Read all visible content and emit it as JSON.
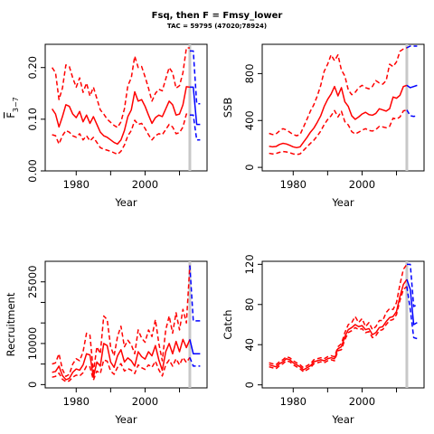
{
  "title": "Fsq, then F = Fmsy_lower",
  "subtitle": "TAC = 59795 (47020;78924)",
  "colors": {
    "historic": "#ff0000",
    "forecast": "#0000ff",
    "vline": "#c8c8c8"
  },
  "chart_data": [
    {
      "type": "line",
      "panel": "top-left",
      "xlabel": "Year",
      "ylabel": "F̄3–7",
      "ylabel_base": "F",
      "ylabel_sub": "3−7",
      "xlim": [
        1971,
        2018
      ],
      "ylim": [
        0,
        0.245
      ],
      "xticks": [
        1980,
        2000
      ],
      "yticks": [
        0.0,
        0.1,
        0.2
      ],
      "ytick_labels": [
        "0.00",
        "0.10",
        "0.20"
      ],
      "vline_x": 2013,
      "historic": {
        "x": [
          1973,
          1974,
          1975,
          1976,
          1977,
          1978,
          1979,
          1980,
          1981,
          1982,
          1983,
          1984,
          1985,
          1986,
          1987,
          1988,
          1989,
          1990,
          1991,
          1992,
          1993,
          1994,
          1995,
          1996,
          1997,
          1998,
          1999,
          2000,
          2001,
          2002,
          2003,
          2004,
          2005,
          2006,
          2007,
          2008,
          2009,
          2010,
          2011,
          2012,
          2013
        ],
        "estimate": [
          0.12,
          0.11,
          0.085,
          0.105,
          0.128,
          0.125,
          0.11,
          0.103,
          0.115,
          0.095,
          0.108,
          0.092,
          0.105,
          0.09,
          0.075,
          0.068,
          0.065,
          0.06,
          0.055,
          0.052,
          0.06,
          0.078,
          0.105,
          0.118,
          0.153,
          0.135,
          0.138,
          0.125,
          0.108,
          0.092,
          0.103,
          0.108,
          0.105,
          0.12,
          0.135,
          0.128,
          0.108,
          0.11,
          0.128,
          0.163,
          0.162
        ],
        "lower": [
          0.07,
          0.068,
          0.052,
          0.068,
          0.078,
          0.075,
          0.068,
          0.065,
          0.072,
          0.06,
          0.068,
          0.058,
          0.065,
          0.055,
          0.045,
          0.042,
          0.04,
          0.038,
          0.035,
          0.032,
          0.038,
          0.05,
          0.068,
          0.078,
          0.098,
          0.09,
          0.092,
          0.082,
          0.07,
          0.06,
          0.068,
          0.072,
          0.07,
          0.08,
          0.09,
          0.085,
          0.072,
          0.074,
          0.085,
          0.11,
          0.108
        ],
        "upper": [
          0.2,
          0.19,
          0.138,
          0.16,
          0.205,
          0.202,
          0.18,
          0.162,
          0.18,
          0.152,
          0.17,
          0.145,
          0.162,
          0.14,
          0.118,
          0.11,
          0.1,
          0.094,
          0.088,
          0.084,
          0.095,
          0.12,
          0.165,
          0.18,
          0.222,
          0.2,
          0.202,
          0.182,
          0.16,
          0.135,
          0.15,
          0.158,
          0.155,
          0.178,
          0.2,
          0.19,
          0.16,
          0.165,
          0.19,
          0.238,
          0.238
        ]
      },
      "forecast": {
        "x": [
          2013,
          2014,
          2015,
          2016
        ],
        "estimate": [
          0.162,
          0.162,
          0.09,
          0.09
        ],
        "lower": [
          0.108,
          0.108,
          0.06,
          0.06
        ],
        "upper": [
          0.232,
          0.232,
          0.13,
          0.13
        ]
      }
    },
    {
      "type": "line",
      "panel": "top-right",
      "xlabel": "Year",
      "ylabel": "SSB",
      "xlim": [
        1971,
        2018
      ],
      "ylim": [
        -30,
        1050
      ],
      "xticks": [
        1980,
        2000
      ],
      "yticks": [
        0,
        400,
        800
      ],
      "ytick_labels": [
        "0",
        "400",
        "800"
      ],
      "vline_x": 2013,
      "historic": {
        "x": [
          1973,
          1974,
          1975,
          1976,
          1977,
          1978,
          1979,
          1980,
          1981,
          1982,
          1983,
          1984,
          1985,
          1986,
          1987,
          1988,
          1989,
          1990,
          1991,
          1992,
          1993,
          1994,
          1995,
          1996,
          1997,
          1998,
          1999,
          2000,
          2001,
          2002,
          2003,
          2004,
          2005,
          2006,
          2007,
          2008,
          2009,
          2010,
          2011,
          2012,
          2013
        ],
        "estimate": [
          180,
          175,
          178,
          195,
          205,
          200,
          188,
          175,
          168,
          175,
          215,
          255,
          300,
          335,
          385,
          440,
          520,
          580,
          625,
          690,
          610,
          680,
          560,
          520,
          440,
          410,
          430,
          455,
          470,
          450,
          445,
          460,
          500,
          490,
          480,
          500,
          600,
          590,
          615,
          690,
          700
        ],
        "lower": [
          120,
          115,
          118,
          128,
          135,
          132,
          125,
          115,
          110,
          115,
          145,
          175,
          205,
          232,
          268,
          310,
          365,
          408,
          440,
          485,
          430,
          478,
          390,
          362,
          305,
          285,
          300,
          318,
          330,
          315,
          310,
          322,
          350,
          345,
          338,
          350,
          420,
          412,
          430,
          482,
          490
        ],
        "upper": [
          290,
          280,
          285,
          310,
          330,
          320,
          300,
          280,
          270,
          280,
          345,
          410,
          480,
          535,
          610,
          700,
          820,
          880,
          960,
          910,
          960,
          830,
          780,
          660,
          620,
          640,
          680,
          700,
          680,
          670,
          690,
          740,
          720,
          710,
          740,
          880,
          860,
          900,
          990,
          1010,
          1020
        ]
      },
      "forecast": {
        "x": [
          2013,
          2014,
          2015,
          2016
        ],
        "estimate": [
          700,
          680,
          690,
          700
        ],
        "lower": [
          490,
          440,
          435,
          440
        ],
        "upper": [
          1020,
          1035,
          1035,
          1035
        ]
      }
    },
    {
      "type": "line",
      "panel": "bottom-left",
      "xlabel": "Year",
      "ylabel": "Recruitment",
      "xlim": [
        1971,
        2018
      ],
      "ylim": [
        -800,
        30000
      ],
      "xticks": [
        1980,
        2000
      ],
      "yticks": [
        0,
        5000,
        10000,
        15000,
        20000,
        25000
      ],
      "ytick_labels": [
        "0",
        "",
        "10000",
        "",
        "",
        "25000"
      ],
      "vline_x": 2013,
      "historic": {
        "x": [
          1973,
          1974,
          1975,
          1976,
          1977,
          1978,
          1979,
          1980,
          1981,
          1982,
          1983,
          1984,
          1985,
          1986,
          1987,
          1988,
          1989,
          1990,
          1991,
          1992,
          1993,
          1994,
          1995,
          1996,
          1997,
          1998,
          1999,
          2000,
          2001,
          2002,
          2003,
          2004,
          2005,
          2006,
          2007,
          2008,
          2009,
          2010,
          2011,
          2012,
          2013
        ],
        "estimate": [
          3000,
          3200,
          4500,
          2200,
          1200,
          1500,
          3000,
          3800,
          3500,
          4800,
          7500,
          7200,
          1800,
          5500,
          4500,
          10000,
          9500,
          5500,
          4200,
          7000,
          8500,
          5500,
          6500,
          5800,
          4500,
          8000,
          6800,
          6200,
          8000,
          7000,
          9500,
          6000,
          3500,
          8000,
          10000,
          7500,
          10500,
          8000,
          11000,
          9000,
          11000
        ],
        "lower": [
          1800,
          2000,
          2800,
          1300,
          700,
          900,
          1800,
          2300,
          2100,
          2900,
          4500,
          4300,
          1100,
          3300,
          2700,
          6000,
          5700,
          3300,
          2500,
          4200,
          5100,
          3300,
          3900,
          3500,
          2700,
          4800,
          4100,
          3700,
          4800,
          4200,
          5700,
          3600,
          2100,
          4800,
          6000,
          4500,
          6300,
          4800,
          6600,
          5400,
          6600
        ],
        "upper": [
          5000,
          5300,
          7500,
          3700,
          2000,
          2500,
          5000,
          6300,
          5800,
          8000,
          12500,
          12000,
          3000,
          9200,
          7500,
          16700,
          15800,
          9200,
          7000,
          11700,
          14200,
          9200,
          10800,
          9700,
          7500,
          13300,
          11300,
          10300,
          13300,
          11700,
          15800,
          10000,
          5800,
          13300,
          16700,
          12500,
          17500,
          13300,
          18300,
          15000,
          29000
        ]
      },
      "forecast": {
        "x": [
          2013,
          2014,
          2015,
          2016
        ],
        "estimate": [
          11000,
          7500,
          7500,
          7500
        ],
        "lower": [
          6600,
          4500,
          4500,
          4500
        ],
        "upper": [
          29000,
          15500,
          15500,
          15500
        ]
      }
    },
    {
      "type": "line",
      "panel": "bottom-right",
      "xlabel": "Year",
      "ylabel": "Catch",
      "xlim": [
        1971,
        2018
      ],
      "ylim": [
        -3,
        123
      ],
      "xticks": [
        1980,
        2000
      ],
      "yticks": [
        0,
        40,
        80,
        120
      ],
      "ytick_labels": [
        "0",
        "40",
        "80",
        "120"
      ],
      "vline_x": 2013,
      "historic": {
        "x": [
          1973,
          1974,
          1975,
          1976,
          1977,
          1978,
          1979,
          1980,
          1981,
          1982,
          1983,
          1984,
          1985,
          1986,
          1987,
          1988,
          1989,
          1990,
          1991,
          1992,
          1993,
          1994,
          1995,
          1996,
          1997,
          1998,
          1999,
          2000,
          2001,
          2002,
          2003,
          2004,
          2005,
          2006,
          2007,
          2008,
          2009,
          2010,
          2011,
          2012,
          2013
        ],
        "estimate": [
          20,
          19,
          18,
          21,
          23,
          26,
          25,
          22,
          20,
          18,
          15,
          17,
          19,
          23,
          24,
          25,
          24,
          26,
          27,
          26,
          36,
          38,
          48,
          55,
          57,
          60,
          58,
          59,
          55,
          56,
          50,
          52,
          57,
          58,
          63,
          67,
          68,
          73,
          88,
          100,
          105
        ],
        "lower": [
          18,
          17,
          16,
          19,
          21,
          24,
          23,
          20,
          18,
          16,
          13,
          15,
          17,
          21,
          22,
          23,
          22,
          24,
          25,
          24,
          34,
          35,
          45,
          52,
          54,
          57,
          55,
          56,
          52,
          53,
          47,
          49,
          54,
          55,
          60,
          64,
          65,
          70,
          84,
          95,
          98
        ],
        "upper": [
          22,
          21,
          20,
          23,
          25,
          28,
          27,
          24,
          22,
          20,
          17,
          19,
          21,
          25,
          26,
          27,
          26,
          28,
          29,
          28,
          38,
          41,
          52,
          60,
          62,
          68,
          62,
          66,
          58,
          62,
          55,
          58,
          64,
          64,
          72,
          76,
          75,
          82,
          100,
          115,
          120
        ]
      },
      "forecast": {
        "x": [
          2013,
          2014,
          2015,
          2016
        ],
        "estimate": [
          105,
          95,
          60,
          62
        ],
        "lower": [
          98,
          75,
          47,
          46
        ],
        "upper": [
          120,
          120,
          78,
          80
        ]
      }
    }
  ]
}
